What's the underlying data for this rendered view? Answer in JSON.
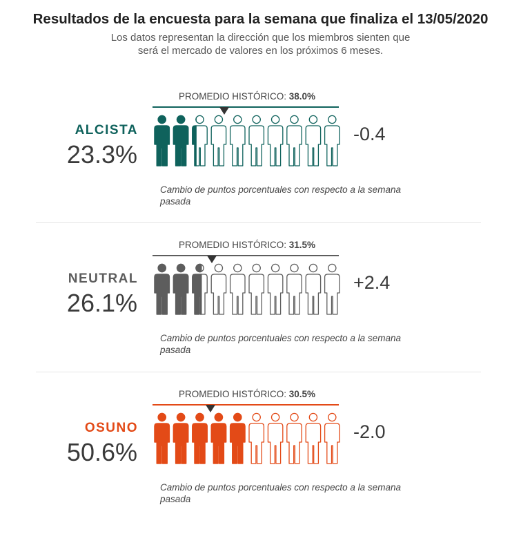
{
  "title": "Resultados de la encuesta para la semana que finaliza el 13/05/2020",
  "subtitle_line1": "Los datos representan la dirección que los miembros sienten que",
  "subtitle_line2": "será el mercado de valores en los próximos 6 meses.",
  "avg_prefix": "PROMEDIO HISTÓRICO: ",
  "note": "Cambio de puntos porcentuales con respecto a la semana pasada",
  "colors": {
    "alcista": "#0f625c",
    "neutral": "#5d5d5d",
    "osuno": "#e34a17"
  },
  "chart_data": {
    "type": "pictograph",
    "title": "Resultados de la encuesta para la semana que finaliza el 13/05/2020",
    "icons_total": 10,
    "scale_max_percent": 100,
    "categories": [
      {
        "key": "alcista",
        "name": "ALCISTA",
        "value": 23.3,
        "value_label": "23.3%",
        "historical_avg": 38.0,
        "historical_avg_label": "38.0%",
        "change": -0.4,
        "change_label": "-0.4"
      },
      {
        "key": "neutral",
        "name": "NEUTRAL",
        "value": 26.1,
        "value_label": "26.1%",
        "historical_avg": 31.5,
        "historical_avg_label": "31.5%",
        "change": 2.4,
        "change_label": "+2.4"
      },
      {
        "key": "osuno",
        "name": "OSUNO",
        "value": 50.6,
        "value_label": "50.6%",
        "historical_avg": 30.5,
        "historical_avg_label": "30.5%",
        "change": -2.0,
        "change_label": "-2.0"
      }
    ]
  }
}
